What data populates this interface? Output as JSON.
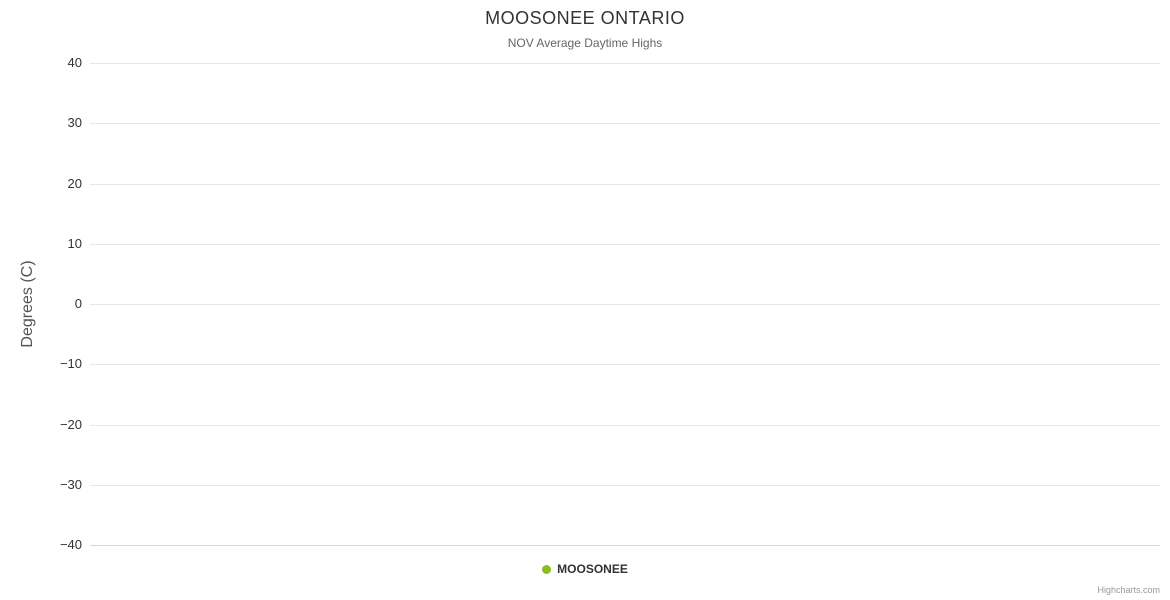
{
  "chart_data": {
    "type": "line",
    "title": "MOOSONEE ONTARIO",
    "subtitle": "NOV Average Daytime Highs",
    "xlabel": "",
    "ylabel": "Degrees (C)",
    "ylim": [
      -40,
      40
    ],
    "ytick_interval": 10,
    "yticks": [
      40,
      30,
      20,
      10,
      0,
      -10,
      -20,
      -30,
      -40
    ],
    "ytick_labels": [
      "40",
      "30",
      "20",
      "10",
      "0",
      "−10",
      "−20",
      "−30",
      "−40"
    ],
    "grid": true,
    "legend_position": "bottom-center",
    "series": [
      {
        "name": "MOOSONEE",
        "color": "#8bbc21",
        "marker": "circle",
        "values": []
      }
    ],
    "colors": {
      "background": "#ffffff",
      "gridline": "#e6e6e6",
      "axis_line": "#ccd6eb",
      "title": "#333333",
      "subtitle": "#666666",
      "tick_label": "#333333",
      "legend_text": "#333333",
      "credit": "#999999"
    }
  },
  "credit": {
    "label": "Highcharts.com"
  }
}
